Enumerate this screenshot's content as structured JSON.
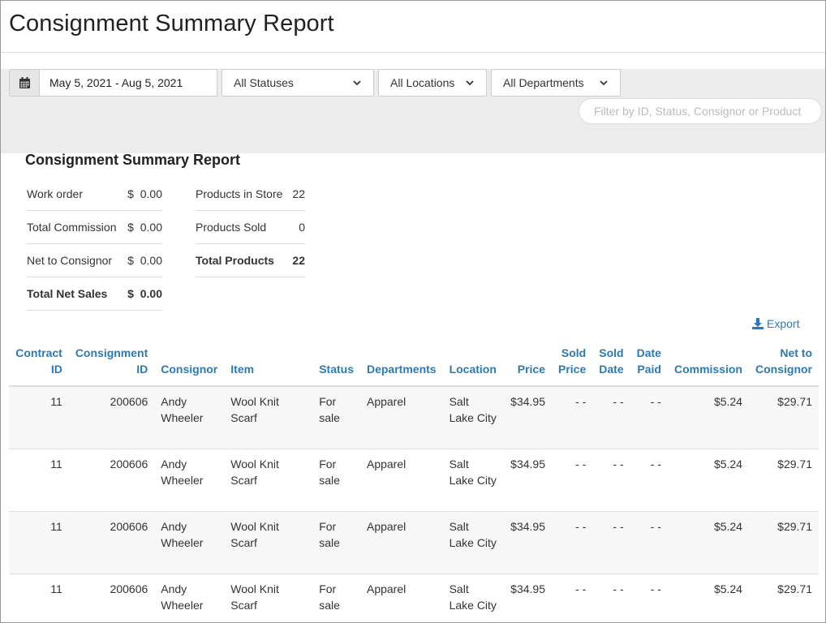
{
  "page": {
    "title": "Consignment Summary Report"
  },
  "filters": {
    "date_range": "May 5, 2021 - Aug 5, 2021",
    "status": "All Statuses",
    "location": "All Locations",
    "department": "All Departments",
    "search_placeholder": "Filter by ID, Status, Consignor or Product"
  },
  "summary": {
    "title": "Consignment Summary Report",
    "left": [
      {
        "label": "Work order",
        "value": "$  0.00"
      },
      {
        "label": "Total Commission",
        "value": "$  0.00"
      },
      {
        "label": "Net to Consignor",
        "value": "$  0.00"
      },
      {
        "label": "Total Net Sales",
        "value": "$  0.00"
      }
    ],
    "right": [
      {
        "label": "Products in Store",
        "value": "22"
      },
      {
        "label": "Products Sold",
        "value": "0"
      },
      {
        "label": "Total Products",
        "value": "22"
      }
    ]
  },
  "export_label": "Export",
  "table": {
    "headers": [
      [
        "Contract",
        "ID"
      ],
      [
        "Consignment",
        "ID"
      ],
      [
        "Consignor"
      ],
      [
        "Item"
      ],
      [
        "Status"
      ],
      [
        "Departments"
      ],
      [
        "Location"
      ],
      [
        "Price"
      ],
      [
        "Sold",
        "Price"
      ],
      [
        "Sold",
        "Date"
      ],
      [
        "Date",
        "Paid"
      ],
      [
        "Commission"
      ],
      [
        "Net to",
        "Consignor"
      ]
    ],
    "rows": [
      [
        "11",
        "200606",
        "Andy Wheeler",
        "Wool Knit Scarf",
        "For sale",
        "Apparel",
        "Salt Lake City",
        "$34.95",
        "- -",
        "- -",
        "- -",
        "$5.24",
        "$29.71"
      ],
      [
        "11",
        "200606",
        "Andy Wheeler",
        "Wool Knit Scarf",
        "For sale",
        "Apparel",
        "Salt Lake City",
        "$34.95",
        "- -",
        "- -",
        "- -",
        "$5.24",
        "$29.71"
      ],
      [
        "11",
        "200606",
        "Andy Wheeler",
        "Wool Knit Scarf",
        "For sale",
        "Apparel",
        "Salt Lake City",
        "$34.95",
        "- -",
        "- -",
        "- -",
        "$5.24",
        "$29.71"
      ],
      [
        "11",
        "200606",
        "Andy Wheeler",
        "Wool Knit Scarf",
        "For sale",
        "Apparel",
        "Salt Lake City",
        "$34.95",
        "- -",
        "- -",
        "- -",
        "$5.24",
        "$29.71"
      ]
    ]
  }
}
